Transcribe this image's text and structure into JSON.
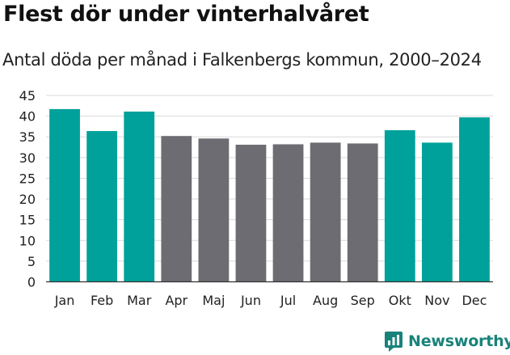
{
  "header": {
    "title": "Flest dör under vinterhalvåret",
    "subtitle": "Antal döda per månad i Falkenbergs kommun, 2000–2024"
  },
  "brand": {
    "name": "Newsworthy"
  },
  "colors": {
    "winter": "#00a19a",
    "summer": "#6d6c72",
    "grid": "#d9d9d9",
    "brand": "#18837a"
  },
  "chart_data": {
    "type": "bar",
    "title": "Flest dör under vinterhalvåret",
    "subtitle": "Antal döda per månad i Falkenbergs kommun, 2000–2024",
    "xlabel": "",
    "ylabel": "",
    "ylim": [
      0,
      45
    ],
    "yticks": [
      0,
      5,
      10,
      15,
      20,
      25,
      30,
      35,
      40,
      45
    ],
    "grid": true,
    "categories": [
      "Jan",
      "Feb",
      "Mar",
      "Apr",
      "Maj",
      "Jun",
      "Jul",
      "Aug",
      "Sep",
      "Okt",
      "Nov",
      "Dec"
    ],
    "values": [
      41.7,
      36.4,
      41.1,
      35.2,
      34.6,
      33.1,
      33.2,
      33.6,
      33.4,
      36.6,
      33.6,
      39.7
    ],
    "bar_groups": [
      "winter",
      "winter",
      "winter",
      "summer",
      "summer",
      "summer",
      "summer",
      "summer",
      "summer",
      "winter",
      "winter",
      "winter"
    ]
  }
}
